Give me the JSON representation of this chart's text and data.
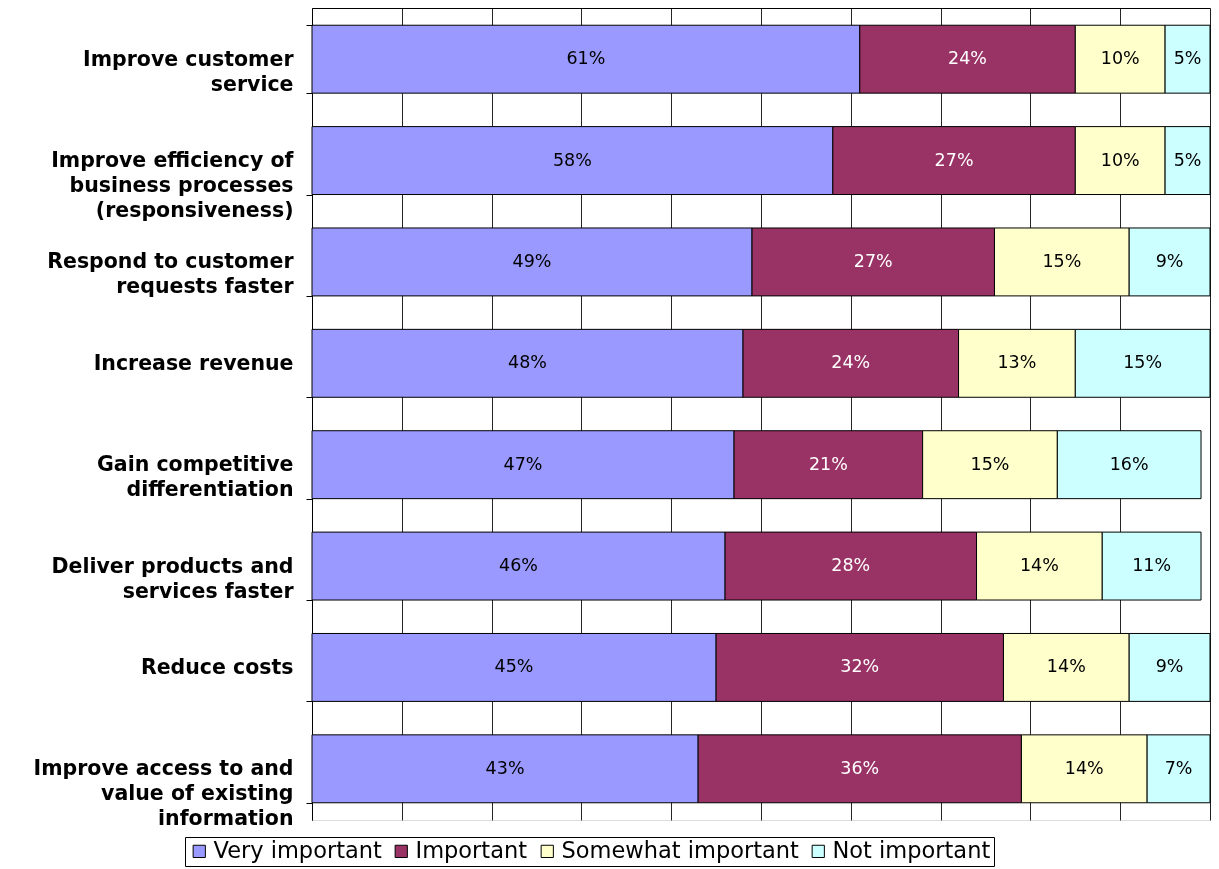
{
  "chart_data": {
    "type": "bar",
    "orientation": "horizontal",
    "stacked": true,
    "categories": [
      "Improve customer service",
      "Improve efficiency of business processes (responsiveness)",
      "Respond to customer requests faster",
      "Increase revenue",
      "Gain competitive differentiation",
      "Deliver products and services faster",
      "Reduce costs",
      "Improve access to and value of existing information"
    ],
    "series": [
      {
        "name": "Very important",
        "color": "#9999ff",
        "values": [
          61,
          58,
          49,
          48,
          47,
          46,
          45,
          43
        ],
        "value_labels": [
          "61%",
          "58%",
          "49%",
          "48%",
          "47%",
          "46%",
          "45%",
          "43%"
        ]
      },
      {
        "name": "Important",
        "color": "#993366",
        "values": [
          24,
          27,
          27,
          24,
          21,
          28,
          32,
          36
        ],
        "value_labels": [
          "24%",
          "27%",
          "27%",
          "24%",
          "21%",
          "28%",
          "32%",
          "36%"
        ]
      },
      {
        "name": "Somewhat important",
        "color": "#ffffcc",
        "values": [
          10,
          10,
          15,
          13,
          15,
          14,
          14,
          14
        ],
        "value_labels": [
          "10%",
          "10%",
          "15%",
          "13%",
          "15%",
          "14%",
          "14%",
          "14%"
        ]
      },
      {
        "name": "Not important",
        "color": "#ccffff",
        "values": [
          5,
          5,
          9,
          15,
          16,
          11,
          9,
          7
        ],
        "value_labels": [
          "5%",
          "5%",
          "9%",
          "15%",
          "16%",
          "11%",
          "9%",
          "7%"
        ]
      }
    ],
    "xlim": [
      0,
      100
    ],
    "xticks": [
      {
        "value": 0,
        "label": null
      },
      {
        "value": 10,
        "label": null
      },
      {
        "value": 20,
        "label": null
      },
      {
        "value": 30,
        "label": null
      },
      {
        "value": 40,
        "label": null
      },
      {
        "value": 50,
        "label": null
      },
      {
        "value": 60,
        "label": null
      },
      {
        "value": 70,
        "label": null
      },
      {
        "value": 80,
        "label": null
      },
      {
        "value": 90,
        "label": null
      },
      {
        "value": 100,
        "label": null
      }
    ],
    "tick_labels": "y",
    "grid": "x",
    "legend": "bottom"
  }
}
